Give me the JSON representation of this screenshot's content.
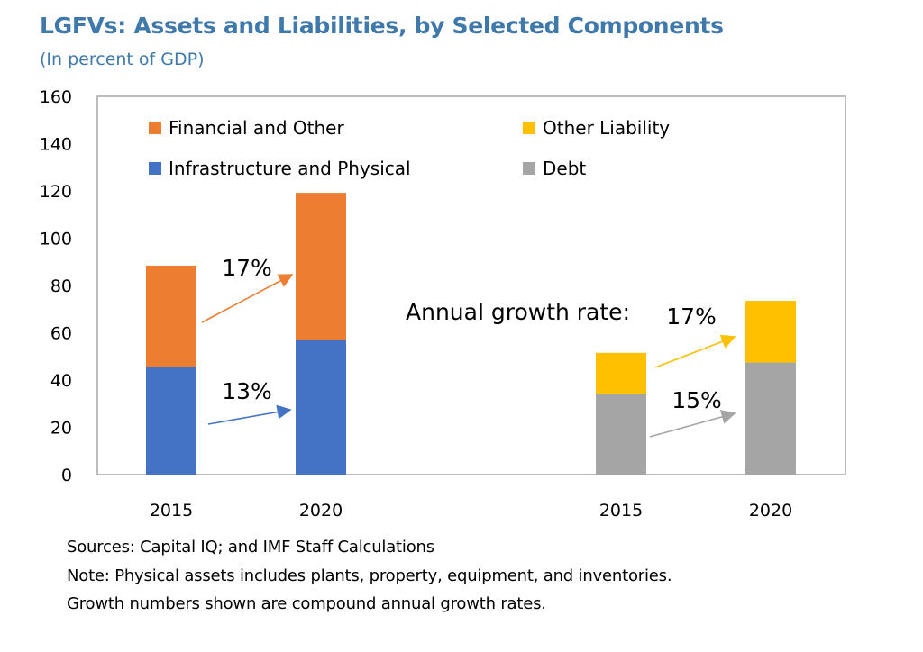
{
  "header": {
    "title": "LGFVs: Assets and Liabilities, by Selected Components",
    "subtitle": "(In percent of GDP)"
  },
  "notes": [
    "Sources: Capital IQ; and IMF Staff Calculations",
    "Note: Physical assets includes plants, property, equipment, and inventories.",
    "Growth numbers shown are compound annual growth rates."
  ],
  "colors": {
    "title": "#3F79AC",
    "financial_other": "#ED7D31",
    "infrastructure_physical": "#4472C4",
    "other_liability": "#FFC000",
    "debt": "#A5A5A5",
    "axis": "#A6A6A6"
  },
  "chart_data": {
    "type": "bar",
    "stacked": true,
    "title": "LGFVs: Assets and Liabilities, by Selected Components",
    "subtitle": "(In percent of GDP)",
    "xlabel": "",
    "ylabel": "",
    "ylim": [
      0,
      160
    ],
    "yticks": [
      0,
      20,
      40,
      60,
      80,
      100,
      120,
      140,
      160
    ],
    "grid": false,
    "legend_position": "top-inside",
    "groups": [
      {
        "name": "Assets",
        "categories": [
          "2015",
          "2020"
        ],
        "series": [
          {
            "name": "Infrastructure and Physical",
            "color": "#4472C4",
            "values": [
              45.7,
              56.8
            ]
          },
          {
            "name": "Financial and Other",
            "color": "#ED7D31",
            "values": [
              42.7,
              62.4
            ]
          }
        ],
        "growth_labels": [
          {
            "series": "Financial and Other",
            "label": "17%"
          },
          {
            "series": "Infrastructure and Physical",
            "label": "13%"
          }
        ]
      },
      {
        "name": "Liabilities",
        "categories": [
          "2015",
          "2020"
        ],
        "series": [
          {
            "name": "Debt",
            "color": "#A5A5A5",
            "values": [
              34.2,
              47.4
            ]
          },
          {
            "name": "Other Liability",
            "color": "#FFC000",
            "values": [
              17.3,
              26.1
            ]
          }
        ],
        "growth_labels": [
          {
            "series": "Other Liability",
            "label": "17%"
          },
          {
            "series": "Debt",
            "label": "15%"
          }
        ]
      }
    ],
    "legend": [
      {
        "name": "Financial and Other",
        "color": "#ED7D31"
      },
      {
        "name": "Other Liability",
        "color": "#FFC000"
      },
      {
        "name": "Infrastructure and Physical",
        "color": "#4472C4"
      },
      {
        "name": "Debt",
        "color": "#A5A5A5"
      }
    ],
    "annotations": [
      {
        "text": "Annual growth rate:"
      }
    ]
  }
}
